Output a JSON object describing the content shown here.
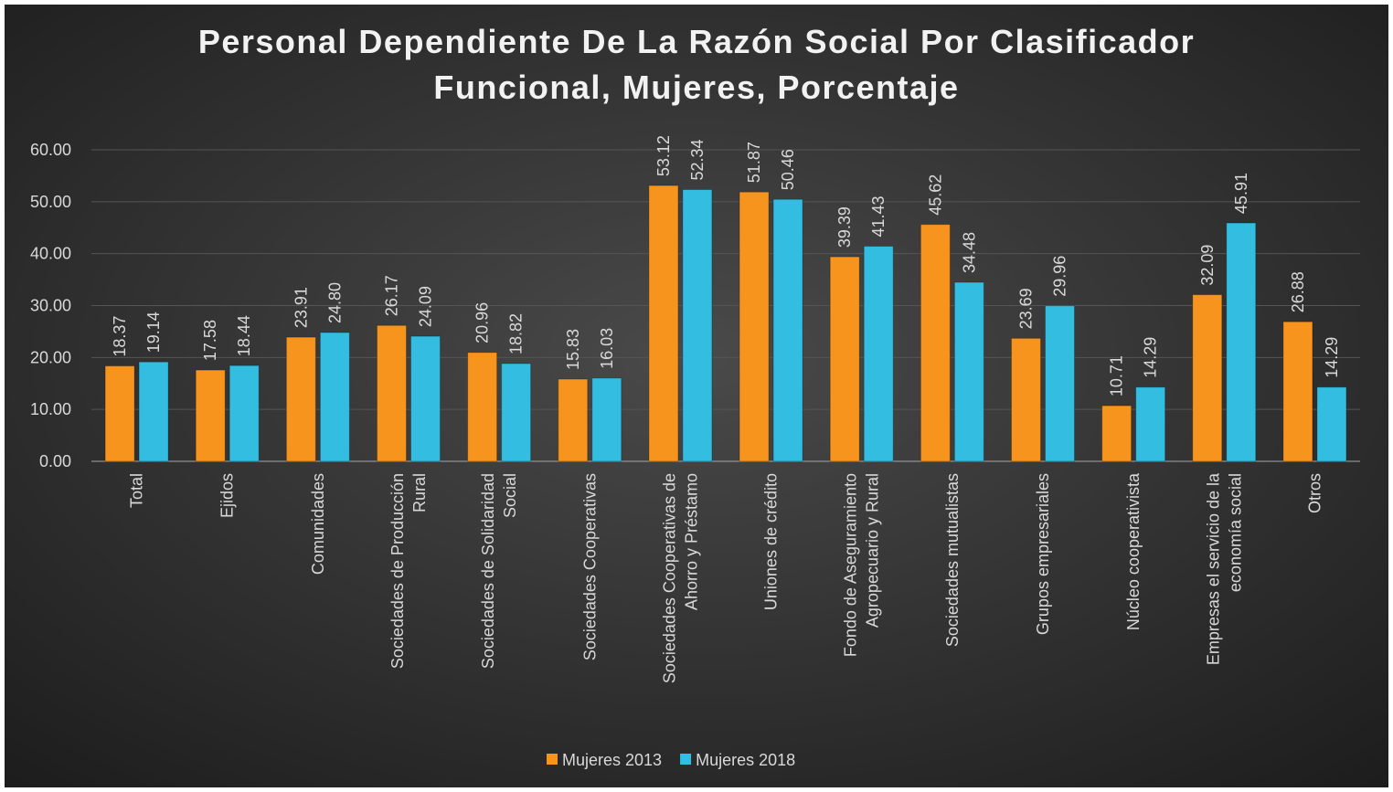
{
  "chart_data": {
    "type": "bar",
    "title": "Personal Dependiente De La Razón Social Por Clasificador Funcional, Mujeres, Porcentaje",
    "categories": [
      "Total",
      "Ejidos",
      "Comunidades",
      "Sociedades de Producción Rural",
      "Sociedades de Solidaridad Social",
      "Sociedades Cooperativas",
      "Sociedades Cooperativas de Ahorro y Préstamo",
      "Uniones de crédito",
      "Fondo de Aseguramiento Agropecuario y Rural",
      "Sociedades mutualistas",
      "Grupos empresariales",
      "Núcleo cooperativista",
      "Empresas el servicio de la economía social",
      "Otros"
    ],
    "series": [
      {
        "name": "Mujeres 2013",
        "color": "#f7941d",
        "values": [
          18.37,
          17.58,
          23.91,
          26.17,
          20.96,
          15.83,
          53.12,
          51.87,
          39.39,
          45.62,
          23.69,
          10.71,
          32.09,
          26.88
        ],
        "value_labels": [
          "18.37",
          "17.58",
          "23.91",
          "26.17",
          "20.96",
          "15.83",
          "53.12",
          "51.87",
          "39.39",
          "45.62",
          "23.69",
          "10.71",
          "32.09",
          "26.88"
        ]
      },
      {
        "name": "Mujeres 2018",
        "color": "#33bde0",
        "values": [
          19.14,
          18.44,
          24.8,
          24.09,
          18.82,
          16.03,
          52.34,
          50.46,
          41.43,
          34.48,
          29.96,
          14.29,
          45.91,
          14.29
        ],
        "value_labels": [
          "19.14",
          "18.44",
          "24.80",
          "24.09",
          "18.82",
          "16.03",
          "52.34",
          "50.46",
          "41.43",
          "34.48",
          "29.96",
          "14.29",
          "45.91",
          "14.29"
        ]
      }
    ],
    "ylim": [
      0,
      60
    ],
    "yticks": [
      {
        "value": 0,
        "label": "0.00"
      },
      {
        "value": 10,
        "label": "10.00"
      },
      {
        "value": 20,
        "label": "20.00"
      },
      {
        "value": 30,
        "label": "30.00"
      },
      {
        "value": 40,
        "label": "40.00"
      },
      {
        "value": 50,
        "label": "50.00"
      },
      {
        "value": 60,
        "label": "60.00"
      }
    ],
    "grid": true,
    "legend": "bottom"
  }
}
